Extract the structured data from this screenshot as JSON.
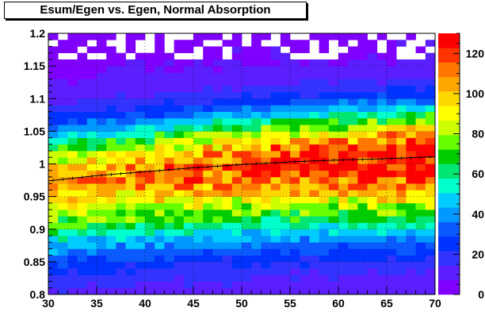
{
  "chart_data": {
    "type": "heatmap",
    "title": "Esum/Egen vs. Egen, Normal Absorption",
    "xlabel": "",
    "ylabel": "",
    "xlim": [
      30,
      70
    ],
    "ylim": [
      0.8,
      1.2
    ],
    "x_ticks": [
      "30",
      "35",
      "40",
      "45",
      "50",
      "55",
      "60",
      "65",
      "70"
    ],
    "y_ticks": [
      "0.8",
      "0.85",
      "0.9",
      "0.95",
      "1",
      "1.05",
      "1.1",
      "1.15",
      "1.2"
    ],
    "z_range": [
      0,
      130
    ],
    "z_ticks": [
      "0",
      "20",
      "40",
      "60",
      "80",
      "100",
      "120"
    ],
    "x_bins": 40,
    "y_bins": 40,
    "grid": true,
    "colorbar": "right",
    "profile": {
      "x": [
        30,
        35,
        40,
        45,
        50,
        55,
        60,
        65,
        70
      ],
      "y": [
        0.974,
        0.982,
        0.988,
        0.994,
        0.999,
        1.003,
        1.006,
        1.008,
        1.011
      ]
    }
  }
}
